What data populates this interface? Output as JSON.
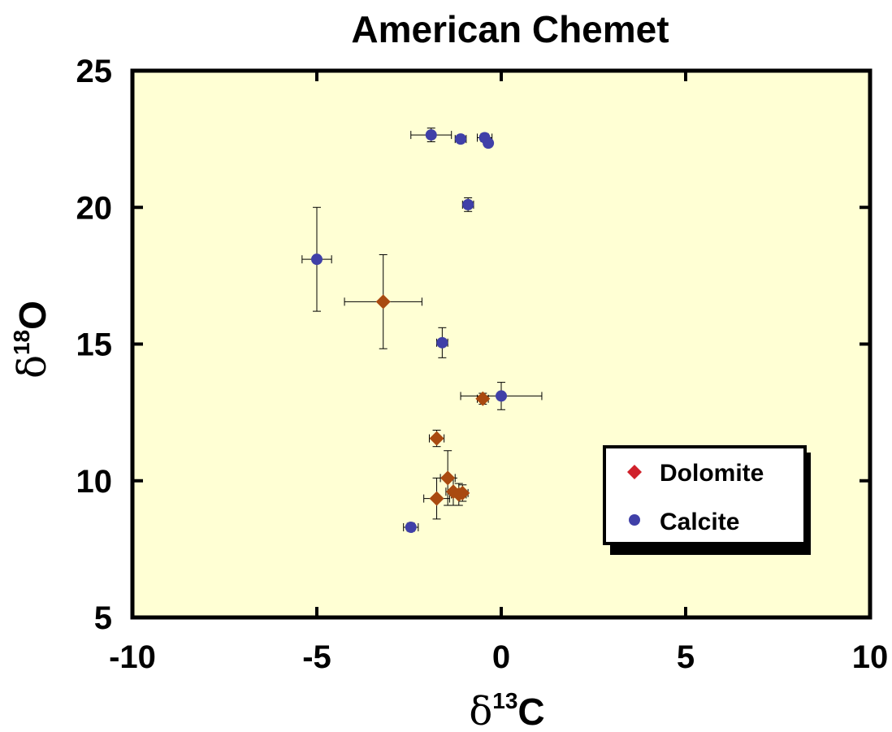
{
  "chart_data": {
    "type": "scatter",
    "title": "American Chemet",
    "xlabel": {
      "symbol": "δ",
      "sup": "13",
      "main": "C"
    },
    "ylabel": {
      "symbol": "δ",
      "sup": "18",
      "main": "O"
    },
    "xlim": [
      -10,
      10
    ],
    "ylim": [
      5,
      25
    ],
    "xticks": [
      -10,
      -5,
      0,
      5,
      10
    ],
    "yticks": [
      5,
      10,
      15,
      20,
      25
    ],
    "xtick_labels": [
      "-10",
      "-5",
      "0",
      "5",
      "10"
    ],
    "ytick_labels": [
      "5",
      "10",
      "15",
      "20",
      "25"
    ],
    "grid": false,
    "plot_background": "#ffffd4",
    "legend": {
      "position": "lower-right"
    },
    "series": [
      {
        "name": "Dolomite",
        "marker": "diamond",
        "color": "#a94a10",
        "legend_color": "#d0212b",
        "points": [
          {
            "x": -3.2,
            "y": 16.55,
            "xerr": 1.05,
            "yerr": 1.72
          },
          {
            "x": -0.5,
            "y": 13.0,
            "xerr": 0.15,
            "yerr": 0.2
          },
          {
            "x": -1.75,
            "y": 11.55,
            "xerr": 0.2,
            "yerr": 0.3
          },
          {
            "x": -1.45,
            "y": 10.1,
            "xerr": 0.2,
            "yerr": 1.0
          },
          {
            "x": -1.75,
            "y": 9.35,
            "xerr": 0.35,
            "yerr": 0.75
          },
          {
            "x": -1.3,
            "y": 9.6,
            "xerr": 0.2,
            "yerr": 0.5
          },
          {
            "x": -1.15,
            "y": 9.5,
            "xerr": 0.2,
            "yerr": 0.4
          },
          {
            "x": -1.05,
            "y": 9.55,
            "xerr": 0.15,
            "yerr": 0.3
          }
        ]
      },
      {
        "name": "Calcite",
        "marker": "circle",
        "color": "#4040a8",
        "legend_color": "#4040a8",
        "points": [
          {
            "x": -1.9,
            "y": 22.65,
            "xerr": 0.55,
            "yerr": 0.25
          },
          {
            "x": -1.1,
            "y": 22.5,
            "xerr": 0.15,
            "yerr": 0.1
          },
          {
            "x": -0.45,
            "y": 22.55,
            "xerr": 0.2,
            "yerr": 0.15
          },
          {
            "x": -0.35,
            "y": 22.35,
            "xerr": 0.1,
            "yerr": 0.1
          },
          {
            "x": -0.9,
            "y": 20.1,
            "xerr": 0.15,
            "yerr": 0.25
          },
          {
            "x": -5.0,
            "y": 18.1,
            "xerr": 0.4,
            "yerr": 1.9
          },
          {
            "x": -1.6,
            "y": 15.05,
            "xerr": 0.15,
            "yerr": 0.55
          },
          {
            "x": 0.0,
            "y": 13.1,
            "xerr": 1.1,
            "yerr": 0.5
          },
          {
            "x": -2.45,
            "y": 8.3,
            "xerr": 0.2,
            "yerr": 0.15
          }
        ]
      }
    ]
  }
}
